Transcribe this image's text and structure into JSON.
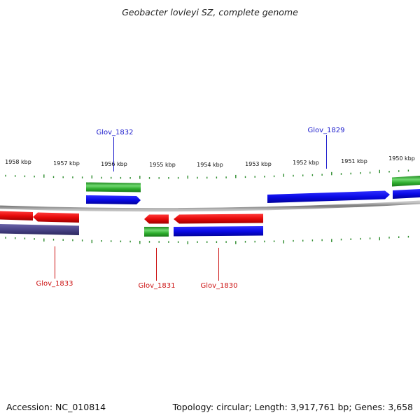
{
  "title": "Geobacter lovleyi SZ, complete genome",
  "footer": {
    "accession": "Accession: NC_010814",
    "topology": "Topology: circular; Length: 3,917,761 bp; Genes: 3,658"
  },
  "scale": {
    "labels": [
      "1958 kbp",
      "1957 kbp",
      "1956 kbp",
      "1955 kbp",
      "1954 kbp",
      "1953 kbp",
      "1952 kbp",
      "1951 kbp",
      "1950 kbp"
    ]
  },
  "genes": {
    "forward": [
      "Glov_1832",
      "Glov_1829"
    ],
    "reverse": [
      "Glov_1833",
      "Glov_1831",
      "Glov_1830"
    ]
  },
  "colors": {
    "forward_label": "#1a1acc",
    "reverse_label": "#cc1111",
    "cds_forward": "#0a0ae6",
    "cds_reverse": "#e60a0a",
    "gene_green": "#2fae2f",
    "gene_purple": "#4a4488",
    "backbone": "#9a9a9a",
    "tick": "#2a8a2a"
  }
}
